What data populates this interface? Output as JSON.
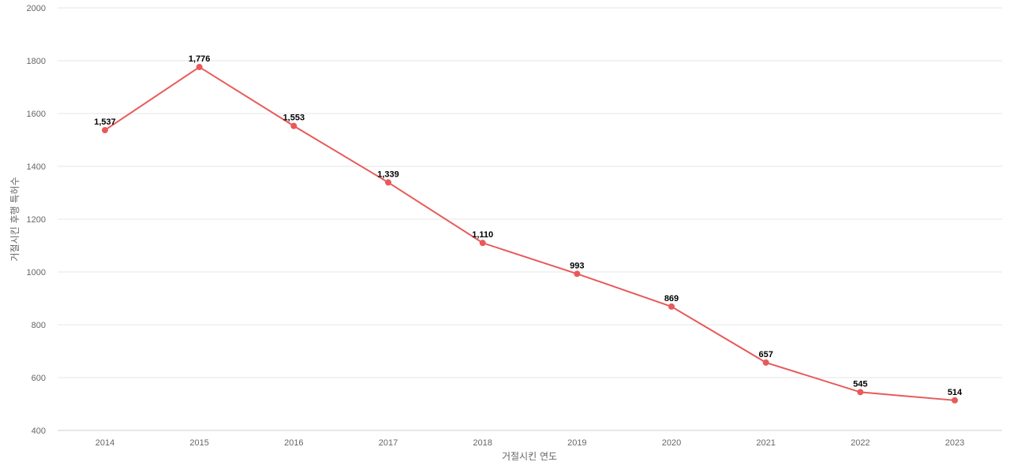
{
  "chart_data": {
    "type": "line",
    "title": "",
    "xlabel": "거절시킨 연도",
    "ylabel": "거절시킨 후행 특허수",
    "ylim": [
      400,
      2000
    ],
    "yticks": [
      400,
      600,
      800,
      1000,
      1200,
      1400,
      1600,
      1800,
      2000
    ],
    "grid": true,
    "legend": "none",
    "categories": [
      "2014",
      "2015",
      "2016",
      "2017",
      "2018",
      "2019",
      "2020",
      "2021",
      "2022",
      "2023"
    ],
    "series": [
      {
        "color": "#e85a5a",
        "values": [
          1537,
          1776,
          1553,
          1339,
          1110,
          993,
          869,
          657,
          545,
          514
        ],
        "labels": [
          "1,537",
          "1,776",
          "1,553",
          "1,339",
          "1,110",
          "993",
          "869",
          "657",
          "545",
          "514"
        ]
      }
    ]
  }
}
